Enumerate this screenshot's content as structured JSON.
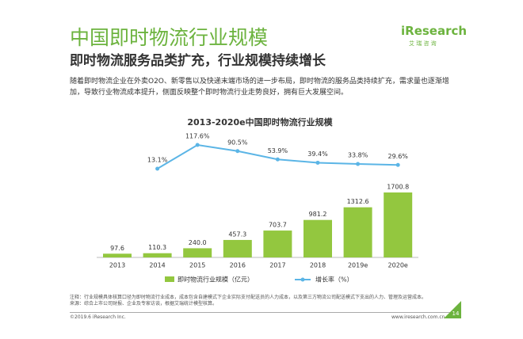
{
  "header": {
    "title": "中国即时物流行业规模",
    "subtitle": "即时物流服务品类扩充，行业规模持续增长",
    "logo": "iResearch",
    "logo_sub": "艾 瑞 咨 询"
  },
  "body": "随着即时物流企业在外卖O2O、新零售以及快递末端市场的进一步布局，即时物流的服务品类持续扩充，需求量也逐渐增加，导致行业物流成本提升，侧面反映整个即时物流行业走势良好，拥有巨大发展空间。",
  "chart_data": {
    "type": "bar",
    "title": "2013-2020e中国即时物流行业规模",
    "categories": [
      "2013",
      "2014",
      "2015",
      "2016",
      "2017",
      "2018",
      "2019e",
      "2020e"
    ],
    "series": [
      {
        "name": "即时物流行业规模（亿元）",
        "color": "#93c73f",
        "values": [
          97.6,
          110.3,
          240,
          457.3,
          703.7,
          981.2,
          1312.6,
          1700.8
        ],
        "value_labels": [
          "97.6",
          "110.3",
          "240.0",
          "457.3",
          "703.7",
          "981.2",
          "1312.6",
          "1700.8"
        ]
      },
      {
        "name": "增长率（%）",
        "color": "#5bb5e6",
        "type": "line",
        "axis": "y2",
        "values": [
          null,
          13.1,
          117.6,
          90.5,
          53.9,
          39.4,
          33.8,
          29.6
        ],
        "value_labels": [
          null,
          "13.1%",
          "117.6%",
          "90.5%",
          "53.9%",
          "39.4%",
          "33.8%",
          "29.6%"
        ]
      }
    ]
  },
  "notes": [
    "注释：行业规模具体核算口径为即时物流行业成本，成本包含自建模式下企业实际支付配送员的人力成本，以及第三方物流公司配送模式下支出的人力、管理及运营成本。",
    "来源：综合上市公司财报、企业及专家访谈，根据艾瑞统计模型核算。"
  ],
  "footer": {
    "copyright": "©2019.6 iResearch Inc.",
    "url": "www.iresearch.com.cn",
    "page": "14"
  }
}
